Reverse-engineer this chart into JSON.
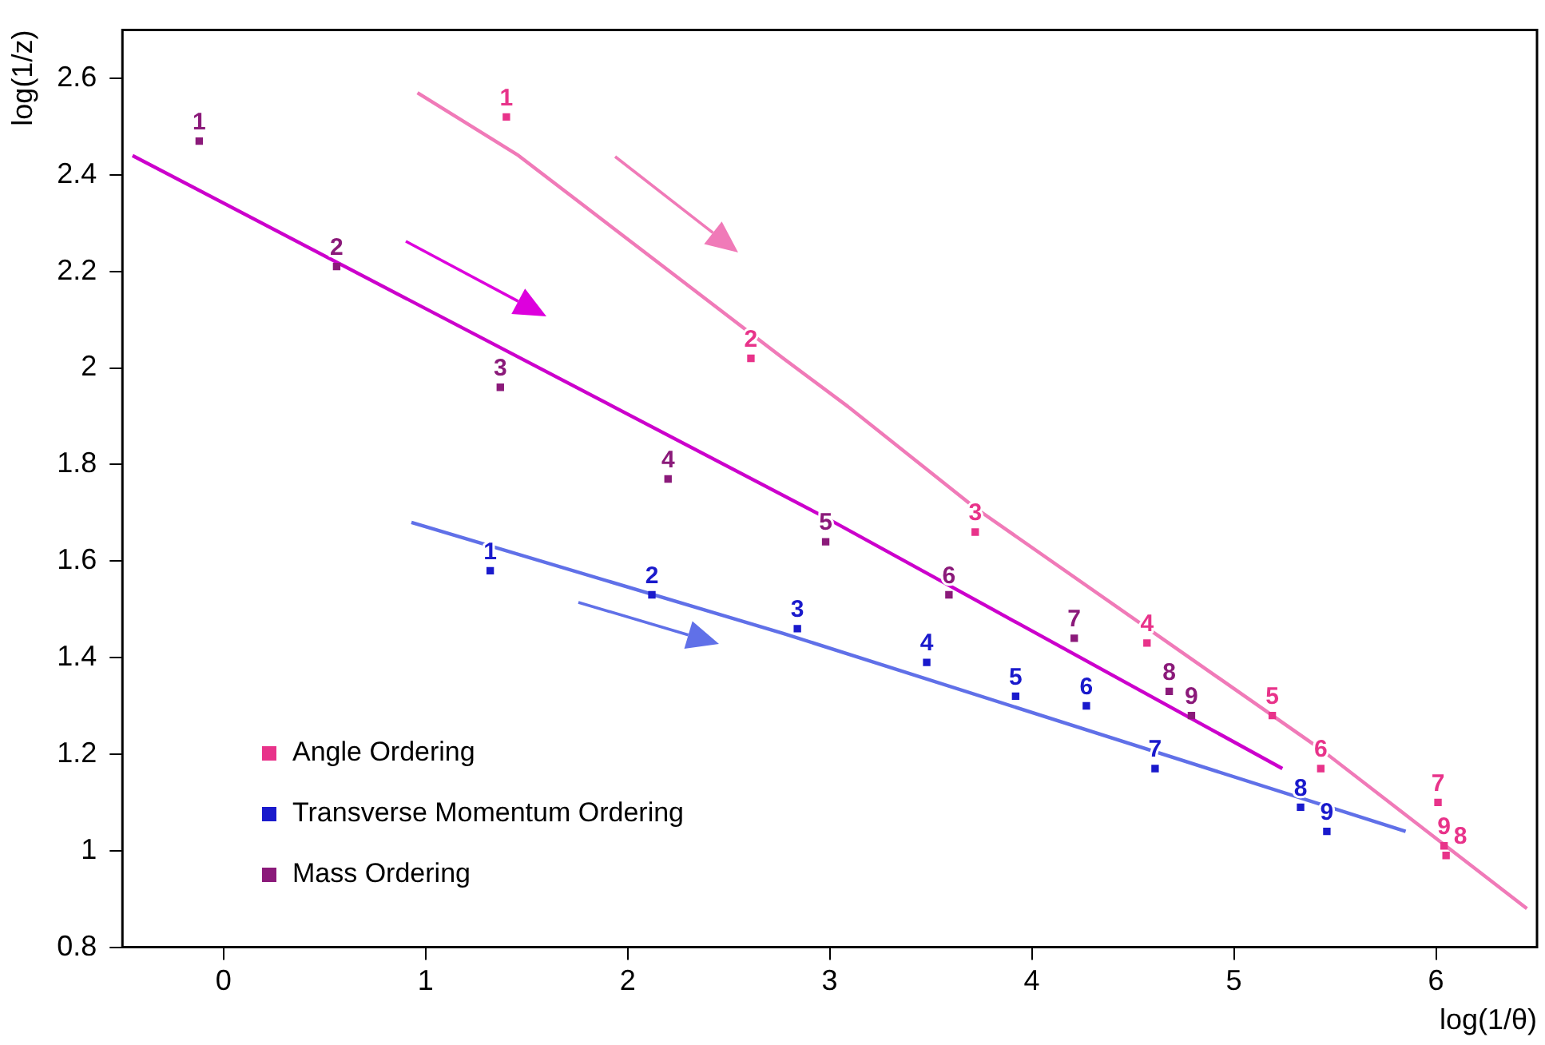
{
  "chart_data": {
    "type": "scatter",
    "xlabel": "log(1/θ)",
    "ylabel": "log(1/z)",
    "xlim": [
      -0.5,
      6.5
    ],
    "ylim": [
      0.8,
      2.7
    ],
    "xticks": [
      0,
      1,
      2,
      3,
      4,
      5,
      6
    ],
    "yticks": [
      0.8,
      1,
      1.2,
      1.4,
      1.6,
      1.8,
      2,
      2.2,
      2.4,
      2.6
    ],
    "grid": false,
    "legend": "bottom left",
    "marker": "square",
    "series": [
      {
        "name": "Angle Ordering",
        "color": "#e8338a",
        "x": [
          1.4,
          2.61,
          3.72,
          4.57,
          5.19,
          5.43,
          6.01,
          6.05,
          6.04
        ],
        "values": [
          2.52,
          2.02,
          1.66,
          1.43,
          1.28,
          1.17,
          1.1,
          0.99,
          1.01
        ]
      },
      {
        "name": "Transverse Momentum Ordering",
        "color": "#1a1acc",
        "x": [
          1.32,
          2.12,
          2.84,
          3.48,
          3.92,
          4.27,
          4.61,
          5.33,
          5.46
        ],
        "values": [
          1.58,
          1.53,
          1.46,
          1.39,
          1.32,
          1.3,
          1.17,
          1.09,
          1.04
        ]
      },
      {
        "name": "Mass Ordering",
        "color": "#8b1a7a",
        "x": [
          -0.12,
          0.56,
          1.37,
          2.2,
          2.98,
          3.59,
          4.21,
          4.68,
          4.79
        ],
        "values": [
          2.47,
          2.21,
          1.96,
          1.77,
          1.64,
          1.53,
          1.44,
          1.33,
          1.28
        ]
      },
      {
        "type": "line",
        "marker": "none",
        "color": "#f07ab8",
        "x": [
          0.96,
          1.46,
          2.77,
          3.09,
          3.72,
          5.43,
          6.45
        ],
        "values": [
          2.57,
          2.44,
          2.02,
          1.92,
          1.71,
          1.21,
          0.88
        ]
      },
      {
        "type": "line",
        "marker": "none",
        "color": "#6070e8",
        "x": [
          0.93,
          2.77,
          5.85
        ],
        "values": [
          1.68,
          1.45,
          1.04
        ]
      },
      {
        "type": "line",
        "marker": "none",
        "color": "#cc00cc",
        "x": [
          -0.45,
          2.98,
          5.24
        ],
        "values": [
          2.44,
          1.69,
          1.17
        ]
      }
    ],
    "annotations": [
      {
        "text": "1",
        "x": 1.4,
        "y": 2.52
      },
      {
        "text": "2",
        "x": 2.61,
        "y": 2.02
      },
      {
        "text": "3",
        "x": 3.72,
        "y": 1.66
      },
      {
        "text": "4",
        "x": 4.57,
        "y": 1.43
      },
      {
        "text": "5",
        "x": 5.19,
        "y": 1.28
      },
      {
        "text": "6",
        "x": 5.43,
        "y": 1.17
      },
      {
        "text": "7",
        "x": 6.01,
        "y": 1.1
      },
      {
        "text": "8",
        "x": 6.05,
        "y": 0.99
      },
      {
        "text": "9",
        "x": 6.04,
        "y": 1.01
      },
      {
        "text": "1",
        "x": 1.32,
        "y": 1.58
      },
      {
        "text": "2",
        "x": 2.12,
        "y": 1.53
      },
      {
        "text": "3",
        "x": 2.84,
        "y": 1.46
      },
      {
        "text": "4",
        "x": 3.48,
        "y": 1.39
      },
      {
        "text": "5",
        "x": 3.92,
        "y": 1.32
      },
      {
        "text": "6",
        "x": 4.27,
        "y": 1.3
      },
      {
        "text": "7",
        "x": 4.61,
        "y": 1.17
      },
      {
        "text": "8",
        "x": 5.33,
        "y": 1.09
      },
      {
        "text": "9",
        "x": 5.46,
        "y": 1.04
      },
      {
        "text": "1",
        "x": -0.12,
        "y": 2.47
      },
      {
        "text": "2",
        "x": 0.56,
        "y": 2.21
      },
      {
        "text": "3",
        "x": 1.37,
        "y": 1.96
      },
      {
        "text": "4",
        "x": 2.2,
        "y": 1.77
      },
      {
        "text": "5",
        "x": 2.98,
        "y": 1.64
      },
      {
        "text": "6",
        "x": 3.59,
        "y": 1.53
      },
      {
        "text": "7",
        "x": 4.21,
        "y": 1.44
      },
      {
        "text": "8",
        "x": 4.68,
        "y": 1.33
      },
      {
        "text": "9",
        "x": 4.79,
        "y": 1.28
      }
    ]
  }
}
